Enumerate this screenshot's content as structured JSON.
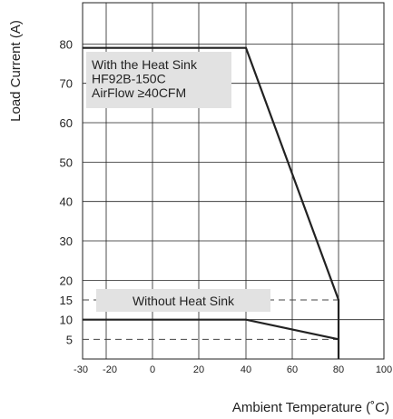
{
  "chart_data": {
    "type": "line",
    "title": "",
    "xlabel": "Ambient Temperature (˚C)",
    "ylabel": "Load  Current (A)",
    "x_ticks": [
      -30,
      -20,
      0,
      20,
      40,
      60,
      80,
      100
    ],
    "y_ticks": [
      5,
      10,
      15,
      20,
      30,
      40,
      50,
      60,
      70,
      80
    ],
    "xlim": [
      -30,
      100
    ],
    "ylim": [
      0,
      90
    ],
    "grid": true,
    "series": [
      {
        "name": "With the Heat Sink",
        "x": [
          -30,
          40,
          80,
          80
        ],
        "y": [
          79,
          79,
          15,
          0
        ]
      },
      {
        "name": "Without Heat Sink",
        "x": [
          -30,
          40,
          80
        ],
        "y": [
          10,
          10,
          5
        ]
      }
    ],
    "reference_lines": [
      {
        "y": 15,
        "x_from": -30,
        "x_to": 80
      },
      {
        "y": 5,
        "x_from": -30,
        "x_to": 80
      }
    ],
    "annotations": [
      {
        "lines": [
          "With the Heat Sink",
          "HF92B-150C",
          "AirFlow ≥40CFM"
        ]
      },
      {
        "lines": [
          "Without Heat Sink"
        ]
      }
    ]
  }
}
